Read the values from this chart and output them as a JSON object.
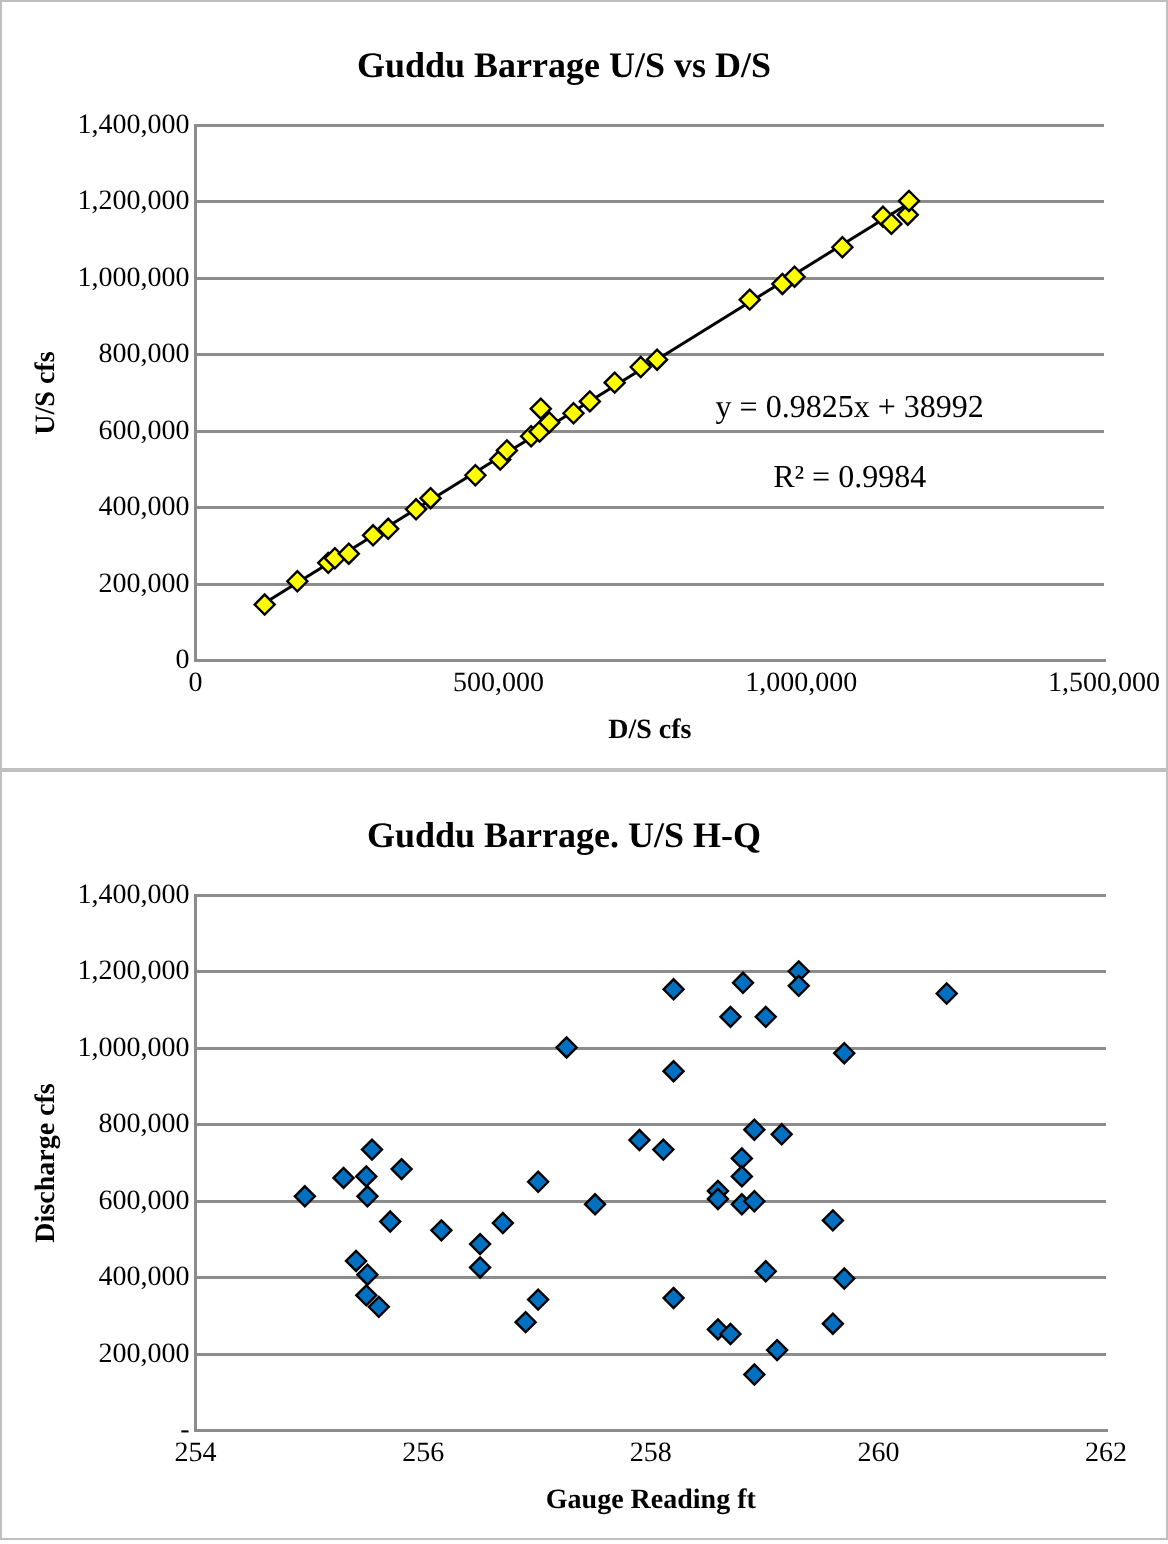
{
  "chart_data": [
    {
      "type": "scatter",
      "title": "Guddu Barrage U/S vs D/S",
      "xlabel": "D/S cfs",
      "ylabel": "U/S cfs",
      "xlim": [
        0,
        1500000
      ],
      "xticks": [
        0,
        {
          "value": 500000,
          "label": "500,000"
        },
        {
          "value": 1000000,
          "label": "1,000,000"
        },
        {
          "value": 1500000,
          "label": "1,500,000"
        }
      ],
      "ylim": [
        0,
        1400000
      ],
      "yticks": [
        0,
        {
          "value": 200000,
          "label": "200,000"
        },
        {
          "value": 400000,
          "label": "400,000"
        },
        {
          "value": 600000,
          "label": "600,000"
        },
        {
          "value": 800000,
          "label": "800,000"
        },
        {
          "value": 1000000,
          "label": "1,000,000"
        },
        {
          "value": 1200000,
          "label": "1,200,000"
        },
        {
          "value": 1400000,
          "label": "1,400,000"
        }
      ],
      "grid": "y",
      "legend": false,
      "marker": "diamond",
      "series": [
        {
          "color": "#ffff00",
          "x": [
            114000,
            168000,
            219000,
            230000,
            253000,
            293000,
            318000,
            364000,
            388000,
            462000,
            503000,
            514000,
            554000,
            568000,
            570000,
            584000,
            624000,
            651000,
            692000,
            735000,
            762000,
            915000,
            969000,
            989000,
            1068000,
            1135000,
            1149000,
            1176000,
            1178000
          ],
          "values": [
            147000,
            208000,
            256000,
            268000,
            280000,
            328000,
            345000,
            396000,
            425000,
            485000,
            526000,
            550000,
            587000,
            599000,
            659000,
            623000,
            647000,
            678000,
            727000,
            768000,
            787000,
            944000,
            985000,
            1004000,
            1081000,
            1161000,
            1142000,
            1166000,
            1202000
          ]
        },
        {
          "type": "line",
          "color": "#000000",
          "marker": "none",
          "line_style": "solid",
          "x": [
            114000,
            1178000
          ],
          "values": [
            151000,
            1196000
          ]
        }
      ],
      "annotations": [
        "y = 0.9825x + 38992",
        "R² = 0.9984"
      ]
    },
    {
      "type": "scatter",
      "title": "Guddu Barrage. U/S H-Q",
      "xlabel": "Gauge Reading ft",
      "ylabel": "Discharge cfs",
      "xlim": [
        254,
        262
      ],
      "xticks": [
        254,
        256,
        258,
        260,
        262
      ],
      "ylim": [
        0,
        1400000
      ],
      "yticks": [
        {
          "value": 0,
          "label": "-"
        },
        {
          "value": 200000,
          "label": "200,000"
        },
        {
          "value": 400000,
          "label": "400,000"
        },
        {
          "value": 600000,
          "label": "600,000"
        },
        {
          "value": 800000,
          "label": "800,000"
        },
        {
          "value": 1000000,
          "label": "1,000,000"
        },
        {
          "value": 1200000,
          "label": "1,200,000"
        },
        {
          "value": 1400000,
          "label": "1,400,000"
        }
      ],
      "grid": "y",
      "legend": false,
      "marker": "diamond",
      "series": [
        {
          "color": "#0070c0",
          "x": [
            254.96,
            255.3,
            255.55,
            255.5,
            255.51,
            255.81,
            255.71,
            256.16,
            256.5,
            256.7,
            257.01,
            257.51,
            257.9,
            258.11,
            258.2,
            258.59,
            258.59,
            258.8,
            258.8,
            258.8,
            258.91,
            258.91,
            259.15,
            259.6,
            255.41,
            255.51,
            255.5,
            255.61,
            256.5,
            257.01,
            256.9,
            258.2,
            258.59,
            258.7,
            259.11,
            258.91,
            259.01,
            259.7,
            259.6,
            257.26,
            258.2,
            258.7,
            258.81,
            259.01,
            259.3,
            259.3,
            259.7,
            260.6
          ],
          "values": [
            613000,
            661000,
            735000,
            665000,
            613000,
            684000,
            547000,
            524000,
            488000,
            543000,
            651000,
            592000,
            760000,
            735000,
            940000,
            627000,
            606000,
            712000,
            665000,
            592000,
            787000,
            600000,
            775000,
            550000,
            444000,
            408000,
            354000,
            324000,
            427000,
            343000,
            284000,
            347000,
            265000,
            253000,
            211000,
            147000,
            417000,
            398000,
            280000,
            1002000,
            1154000,
            1082000,
            1171000,
            1082000,
            1201000,
            1163000,
            987000,
            1143000
          ]
        }
      ]
    }
  ]
}
